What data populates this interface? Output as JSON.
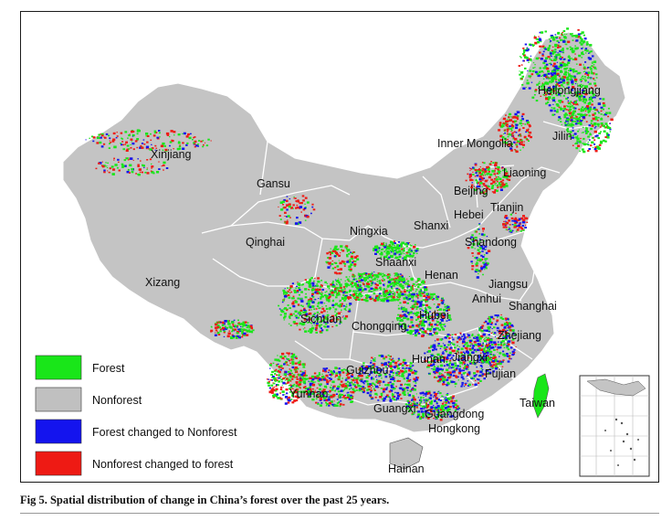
{
  "provinces": [
    "Heilongjiang",
    "Jilin",
    "Liaoning",
    "Inner Mongolia",
    "Xinjiang",
    "Gansu",
    "Beijing",
    "Tianjin",
    "Hebei",
    "Shanxi",
    "Ningxia",
    "Qinghai",
    "Shandong",
    "Shaanxi",
    "Henan",
    "Xizang",
    "Jiangsu",
    "Anhui",
    "Shanghai",
    "Sichuan",
    "Chongqing",
    "Hubei",
    "Zhejiang",
    "Hunan",
    "Jiangxi",
    "Fujian",
    "Guizhou",
    "Yunnan",
    "Taiwan",
    "Guangxi",
    "Guangdong",
    "Hongkong",
    "Hainan"
  ],
  "legend": [
    {
      "label": "Forest",
      "color": "#19e619"
    },
    {
      "label": "Nonforest",
      "color": "#c0c0c0"
    },
    {
      "label": "Forest changed to Nonforest",
      "color": "#1414ee"
    },
    {
      "label": "Nonforest changed to forest",
      "color": "#ee1a14"
    }
  ],
  "colors": {
    "land": "#c4c4c4",
    "border": "#ffffff",
    "forest": "#19e619",
    "loss": "#1414ee",
    "gain": "#ee1a14"
  },
  "caption": "Fig 5. Spatial distribution of change in China’s forest over the past 25 years."
}
